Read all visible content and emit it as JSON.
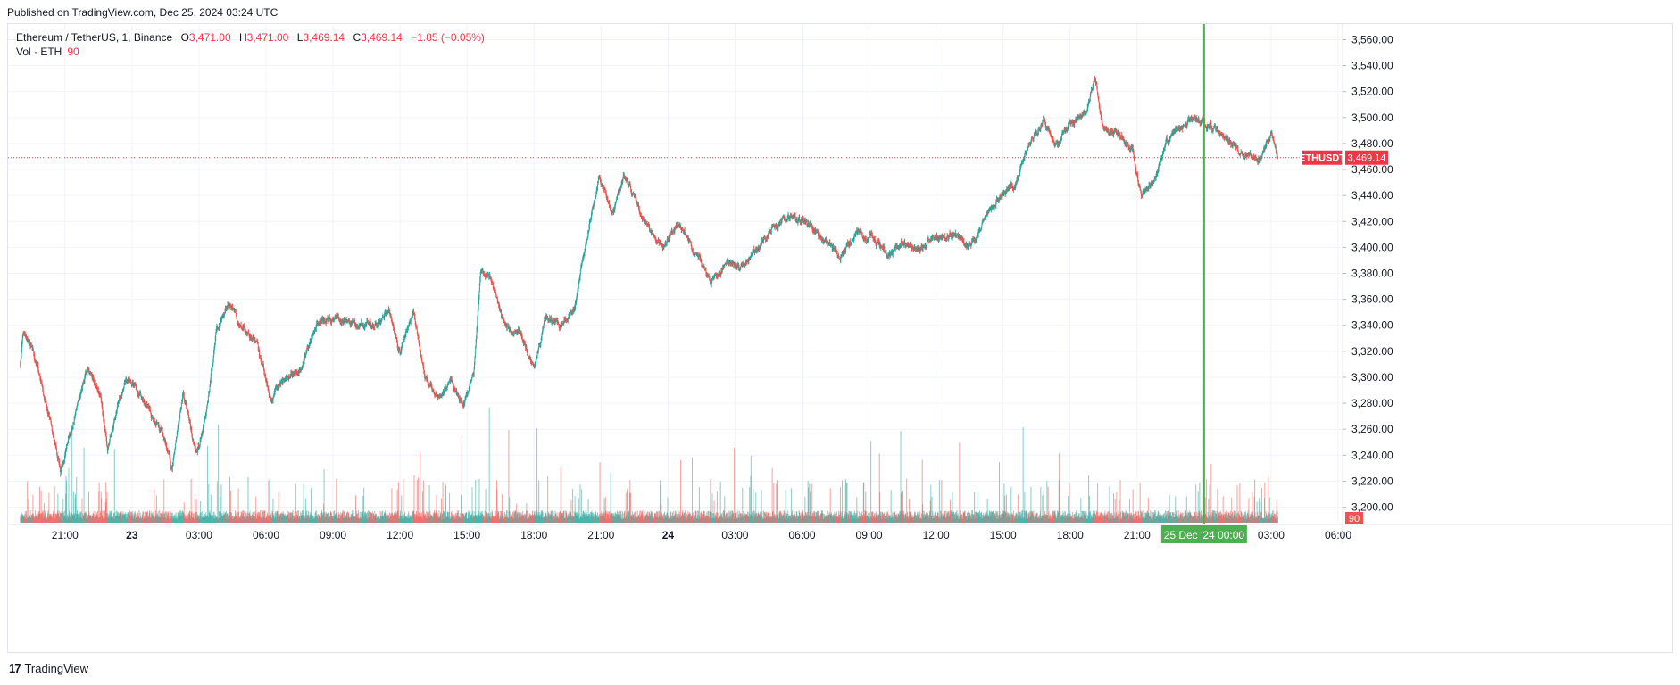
{
  "header": {
    "published": "Published on TradingView.com, Dec 25, 2024 03:24 UTC"
  },
  "legend": {
    "symbol": "Ethereum / TetherUS, 1, Binance",
    "o_label": "O",
    "o_value": "3,471.00",
    "h_label": "H",
    "h_value": "3,471.00",
    "l_label": "L",
    "l_value": "3,469.14",
    "c_label": "C",
    "c_value": "3,469.14",
    "change": "−1.85 (−0.05%)",
    "vol_label": "Vol · ETH",
    "vol_value": "90"
  },
  "footer": {
    "logo": "17",
    "brand": "TradingView"
  },
  "colors": {
    "up": "#26a69a",
    "down": "#ef5350",
    "grid": "#f0f3fa",
    "price_line": "#f23645",
    "crosshair": "#4caf50"
  },
  "chart_data": {
    "type": "candlestick",
    "instrument": "ETHUSDT",
    "last_price": 3469.14,
    "last_price_label": "3,469.14",
    "last_volume_label": "90",
    "y_ticks": [
      3200,
      3220,
      3240,
      3260,
      3280,
      3300,
      3320,
      3340,
      3360,
      3380,
      3400,
      3420,
      3440,
      3460,
      3480,
      3500,
      3520,
      3540,
      3560
    ],
    "y_tick_labels": [
      "3,200.00",
      "3,220.00",
      "3,240.00",
      "3,260.00",
      "3,280.00",
      "3,300.00",
      "3,320.00",
      "3,340.00",
      "3,360.00",
      "3,380.00",
      "3,400.00",
      "3,420.00",
      "3,440.00",
      "3,460.00",
      "3,480.00",
      "3,500.00",
      "3,520.00",
      "3,540.00",
      "3,560.00"
    ],
    "ylim": [
      3188,
      3572
    ],
    "x_ticks": [
      "21:00",
      "23",
      "03:00",
      "06:00",
      "09:00",
      "12:00",
      "15:00",
      "18:00",
      "21:00",
      "24",
      "03:00",
      "06:00",
      "09:00",
      "12:00",
      "15:00",
      "18:00",
      "21:00",
      "03:00",
      "06:00"
    ],
    "x_tick_hours": [
      2,
      5,
      8,
      11,
      14,
      17,
      20,
      23,
      26,
      29,
      32,
      35,
      38,
      41,
      44,
      47,
      50,
      56,
      59
    ],
    "x_range_hours": [
      -0.55,
      59.2
    ],
    "crosshair": {
      "hour": 53.0,
      "label": "25 Dec '24   00:00"
    },
    "price_path": [
      {
        "t": 0.0,
        "p": 3310
      },
      {
        "t": 0.12,
        "p": 3335
      },
      {
        "t": 0.6,
        "p": 3318
      },
      {
        "t": 1.3,
        "p": 3270
      },
      {
        "t": 1.8,
        "p": 3228
      },
      {
        "t": 2.5,
        "p": 3275
      },
      {
        "t": 3.0,
        "p": 3307
      },
      {
        "t": 3.6,
        "p": 3286
      },
      {
        "t": 3.9,
        "p": 3245
      },
      {
        "t": 4.4,
        "p": 3282
      },
      {
        "t": 4.9,
        "p": 3300
      },
      {
        "t": 5.6,
        "p": 3280
      },
      {
        "t": 6.3,
        "p": 3258
      },
      {
        "t": 6.8,
        "p": 3230
      },
      {
        "t": 7.3,
        "p": 3290
      },
      {
        "t": 7.9,
        "p": 3238
      },
      {
        "t": 8.3,
        "p": 3270
      },
      {
        "t": 8.8,
        "p": 3338
      },
      {
        "t": 9.3,
        "p": 3358
      },
      {
        "t": 9.9,
        "p": 3340
      },
      {
        "t": 10.6,
        "p": 3327
      },
      {
        "t": 11.2,
        "p": 3285
      },
      {
        "t": 11.9,
        "p": 3300
      },
      {
        "t": 12.6,
        "p": 3307
      },
      {
        "t": 13.3,
        "p": 3343
      },
      {
        "t": 14.0,
        "p": 3345
      },
      {
        "t": 15.0,
        "p": 3340
      },
      {
        "t": 16.0,
        "p": 3342
      },
      {
        "t": 16.5,
        "p": 3353
      },
      {
        "t": 17.0,
        "p": 3320
      },
      {
        "t": 17.6,
        "p": 3350
      },
      {
        "t": 18.1,
        "p": 3300
      },
      {
        "t": 18.8,
        "p": 3283
      },
      {
        "t": 19.3,
        "p": 3298
      },
      {
        "t": 19.8,
        "p": 3278
      },
      {
        "t": 20.3,
        "p": 3300
      },
      {
        "t": 20.6,
        "p": 3378
      },
      {
        "t": 21.1,
        "p": 3375
      },
      {
        "t": 21.7,
        "p": 3340
      },
      {
        "t": 22.4,
        "p": 3337
      },
      {
        "t": 23.0,
        "p": 3305
      },
      {
        "t": 23.5,
        "p": 3345
      },
      {
        "t": 24.2,
        "p": 3340
      },
      {
        "t": 24.8,
        "p": 3355
      },
      {
        "t": 25.3,
        "p": 3400
      },
      {
        "t": 25.9,
        "p": 3455
      },
      {
        "t": 26.5,
        "p": 3425
      },
      {
        "t": 27.0,
        "p": 3455
      },
      {
        "t": 27.6,
        "p": 3435
      },
      {
        "t": 28.2,
        "p": 3410
      },
      {
        "t": 28.8,
        "p": 3400
      },
      {
        "t": 29.5,
        "p": 3418
      },
      {
        "t": 30.2,
        "p": 3397
      },
      {
        "t": 30.9,
        "p": 3375
      },
      {
        "t": 31.5,
        "p": 3387
      },
      {
        "t": 32.2,
        "p": 3384
      },
      {
        "t": 33.0,
        "p": 3397
      },
      {
        "t": 33.7,
        "p": 3417
      },
      {
        "t": 34.4,
        "p": 3423
      },
      {
        "t": 35.2,
        "p": 3420
      },
      {
        "t": 36.0,
        "p": 3405
      },
      {
        "t": 36.7,
        "p": 3393
      },
      {
        "t": 37.4,
        "p": 3408
      },
      {
        "t": 38.1,
        "p": 3410
      },
      {
        "t": 38.8,
        "p": 3393
      },
      {
        "t": 39.5,
        "p": 3404
      },
      {
        "t": 40.3,
        "p": 3397
      },
      {
        "t": 41.0,
        "p": 3407
      },
      {
        "t": 41.7,
        "p": 3411
      },
      {
        "t": 42.5,
        "p": 3400
      },
      {
        "t": 43.2,
        "p": 3423
      },
      {
        "t": 43.9,
        "p": 3440
      },
      {
        "t": 44.6,
        "p": 3450
      },
      {
        "t": 45.1,
        "p": 3478
      },
      {
        "t": 45.8,
        "p": 3497
      },
      {
        "t": 46.4,
        "p": 3480
      },
      {
        "t": 47.0,
        "p": 3495
      },
      {
        "t": 47.7,
        "p": 3505
      },
      {
        "t": 48.1,
        "p": 3530
      },
      {
        "t": 48.5,
        "p": 3492
      },
      {
        "t": 49.2,
        "p": 3488
      },
      {
        "t": 49.8,
        "p": 3474
      },
      {
        "t": 50.2,
        "p": 3438
      },
      {
        "t": 50.7,
        "p": 3450
      },
      {
        "t": 51.3,
        "p": 3480
      },
      {
        "t": 51.9,
        "p": 3491
      },
      {
        "t": 52.6,
        "p": 3500
      },
      {
        "t": 53.4,
        "p": 3490
      },
      {
        "t": 54.1,
        "p": 3485
      },
      {
        "t": 54.8,
        "p": 3470
      },
      {
        "t": 55.5,
        "p": 3467
      },
      {
        "t": 56.0,
        "p": 3488
      },
      {
        "t": 56.3,
        "p": 3469
      }
    ]
  }
}
